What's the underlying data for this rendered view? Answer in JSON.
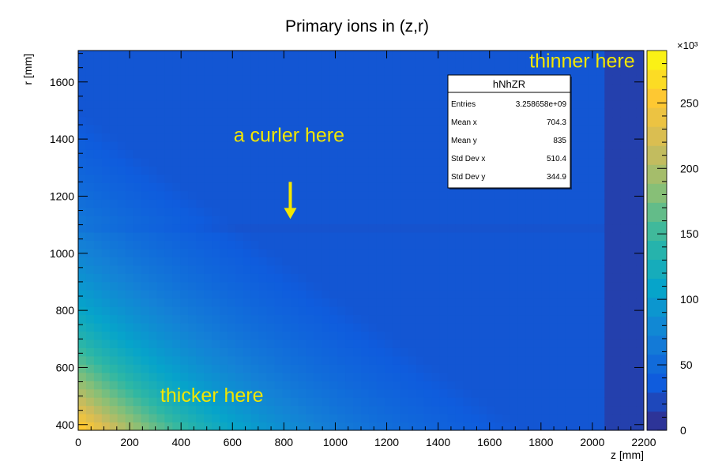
{
  "chart_data": {
    "type": "heatmap",
    "title": "Primary ions in (z,r)",
    "xlabel": "z [mm]",
    "ylabel": "r [mm]",
    "xlim": [
      0,
      2200
    ],
    "ylim": [
      380,
      1710
    ],
    "x_ticks": [
      0,
      200,
      400,
      600,
      800,
      1000,
      1200,
      1400,
      1600,
      1800,
      2000,
      2200
    ],
    "y_ticks": [
      400,
      600,
      800,
      1000,
      1200,
      1400,
      1600
    ],
    "z_range": [
      0,
      290000
    ],
    "z_exponent_label": "×10³",
    "z_ticks": [
      {
        "value": 0,
        "label": "0"
      },
      {
        "value": 50000,
        "label": "50"
      },
      {
        "value": 100000,
        "label": "100"
      },
      {
        "value": 150000,
        "label": "150"
      },
      {
        "value": 200000,
        "label": "200"
      },
      {
        "value": 250000,
        "label": "250"
      }
    ],
    "palette": [
      "#352a87",
      "#0f5cdd",
      "#1481d6",
      "#06a4ca",
      "#2eb7a4",
      "#87bf77",
      "#d1bb59",
      "#fec832",
      "#f9fb0e"
    ],
    "stats_box": {
      "name": "hNhZR",
      "rows": [
        {
          "label": "Entries",
          "value": "3.258658e+09"
        },
        {
          "label": "Mean x",
          "value": "704.3"
        },
        {
          "label": "Mean y",
          "value": "835"
        },
        {
          "label": "Std Dev x",
          "value": "510.4"
        },
        {
          "label": "Std Dev y",
          "value": "344.9"
        }
      ]
    },
    "annotations": [
      {
        "id": "thinner",
        "text": "thinner here",
        "z": 1960,
        "r": 1650
      },
      {
        "id": "curler",
        "text": "a curler here",
        "z": 820,
        "r": 1390
      },
      {
        "id": "thicker",
        "text": "thicker here",
        "z": 520,
        "r": 480
      }
    ],
    "arrow": {
      "z": 825,
      "r_from": 1250,
      "r_to": 1120
    },
    "annotation_color": "#f2e600"
  }
}
